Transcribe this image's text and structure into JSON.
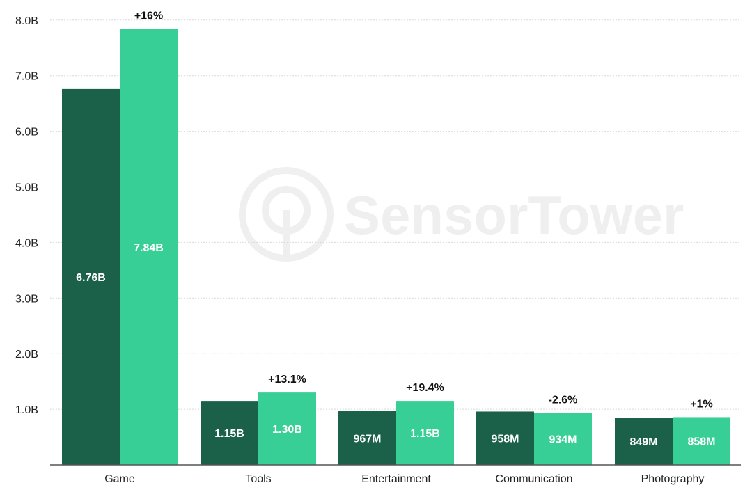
{
  "chart_data": {
    "type": "bar",
    "categories": [
      "Game",
      "Tools",
      "Entertainment",
      "Communication",
      "Photography"
    ],
    "series": [
      {
        "values": [
          6.76,
          1.15,
          0.967,
          0.958,
          0.849
        ],
        "labels": [
          "6.76B",
          "1.15B",
          "967M",
          "958M",
          "849M"
        ],
        "color": "#1b614a"
      },
      {
        "values": [
          7.84,
          1.3,
          1.15,
          0.934,
          0.858
        ],
        "labels": [
          "7.84B",
          "1.30B",
          "1.15B",
          "934M",
          "858M"
        ],
        "color": "#37cf95"
      }
    ],
    "changes": [
      "+16%",
      "+13.1%",
      "+19.4%",
      "-2.6%",
      "+1%"
    ],
    "yticks": [
      {
        "value": 1.0,
        "label": "1.0B"
      },
      {
        "value": 2.0,
        "label": "2.0B"
      },
      {
        "value": 3.0,
        "label": "3.0B"
      },
      {
        "value": 4.0,
        "label": "4.0B"
      },
      {
        "value": 5.0,
        "label": "5.0B"
      },
      {
        "value": 6.0,
        "label": "6.0B"
      },
      {
        "value": 7.0,
        "label": "7.0B"
      },
      {
        "value": 8.0,
        "label": "8.0B"
      }
    ],
    "ylim": [
      0,
      8
    ],
    "grid": true,
    "watermark": "SensorTower",
    "title": "",
    "xlabel": "",
    "ylabel": ""
  }
}
